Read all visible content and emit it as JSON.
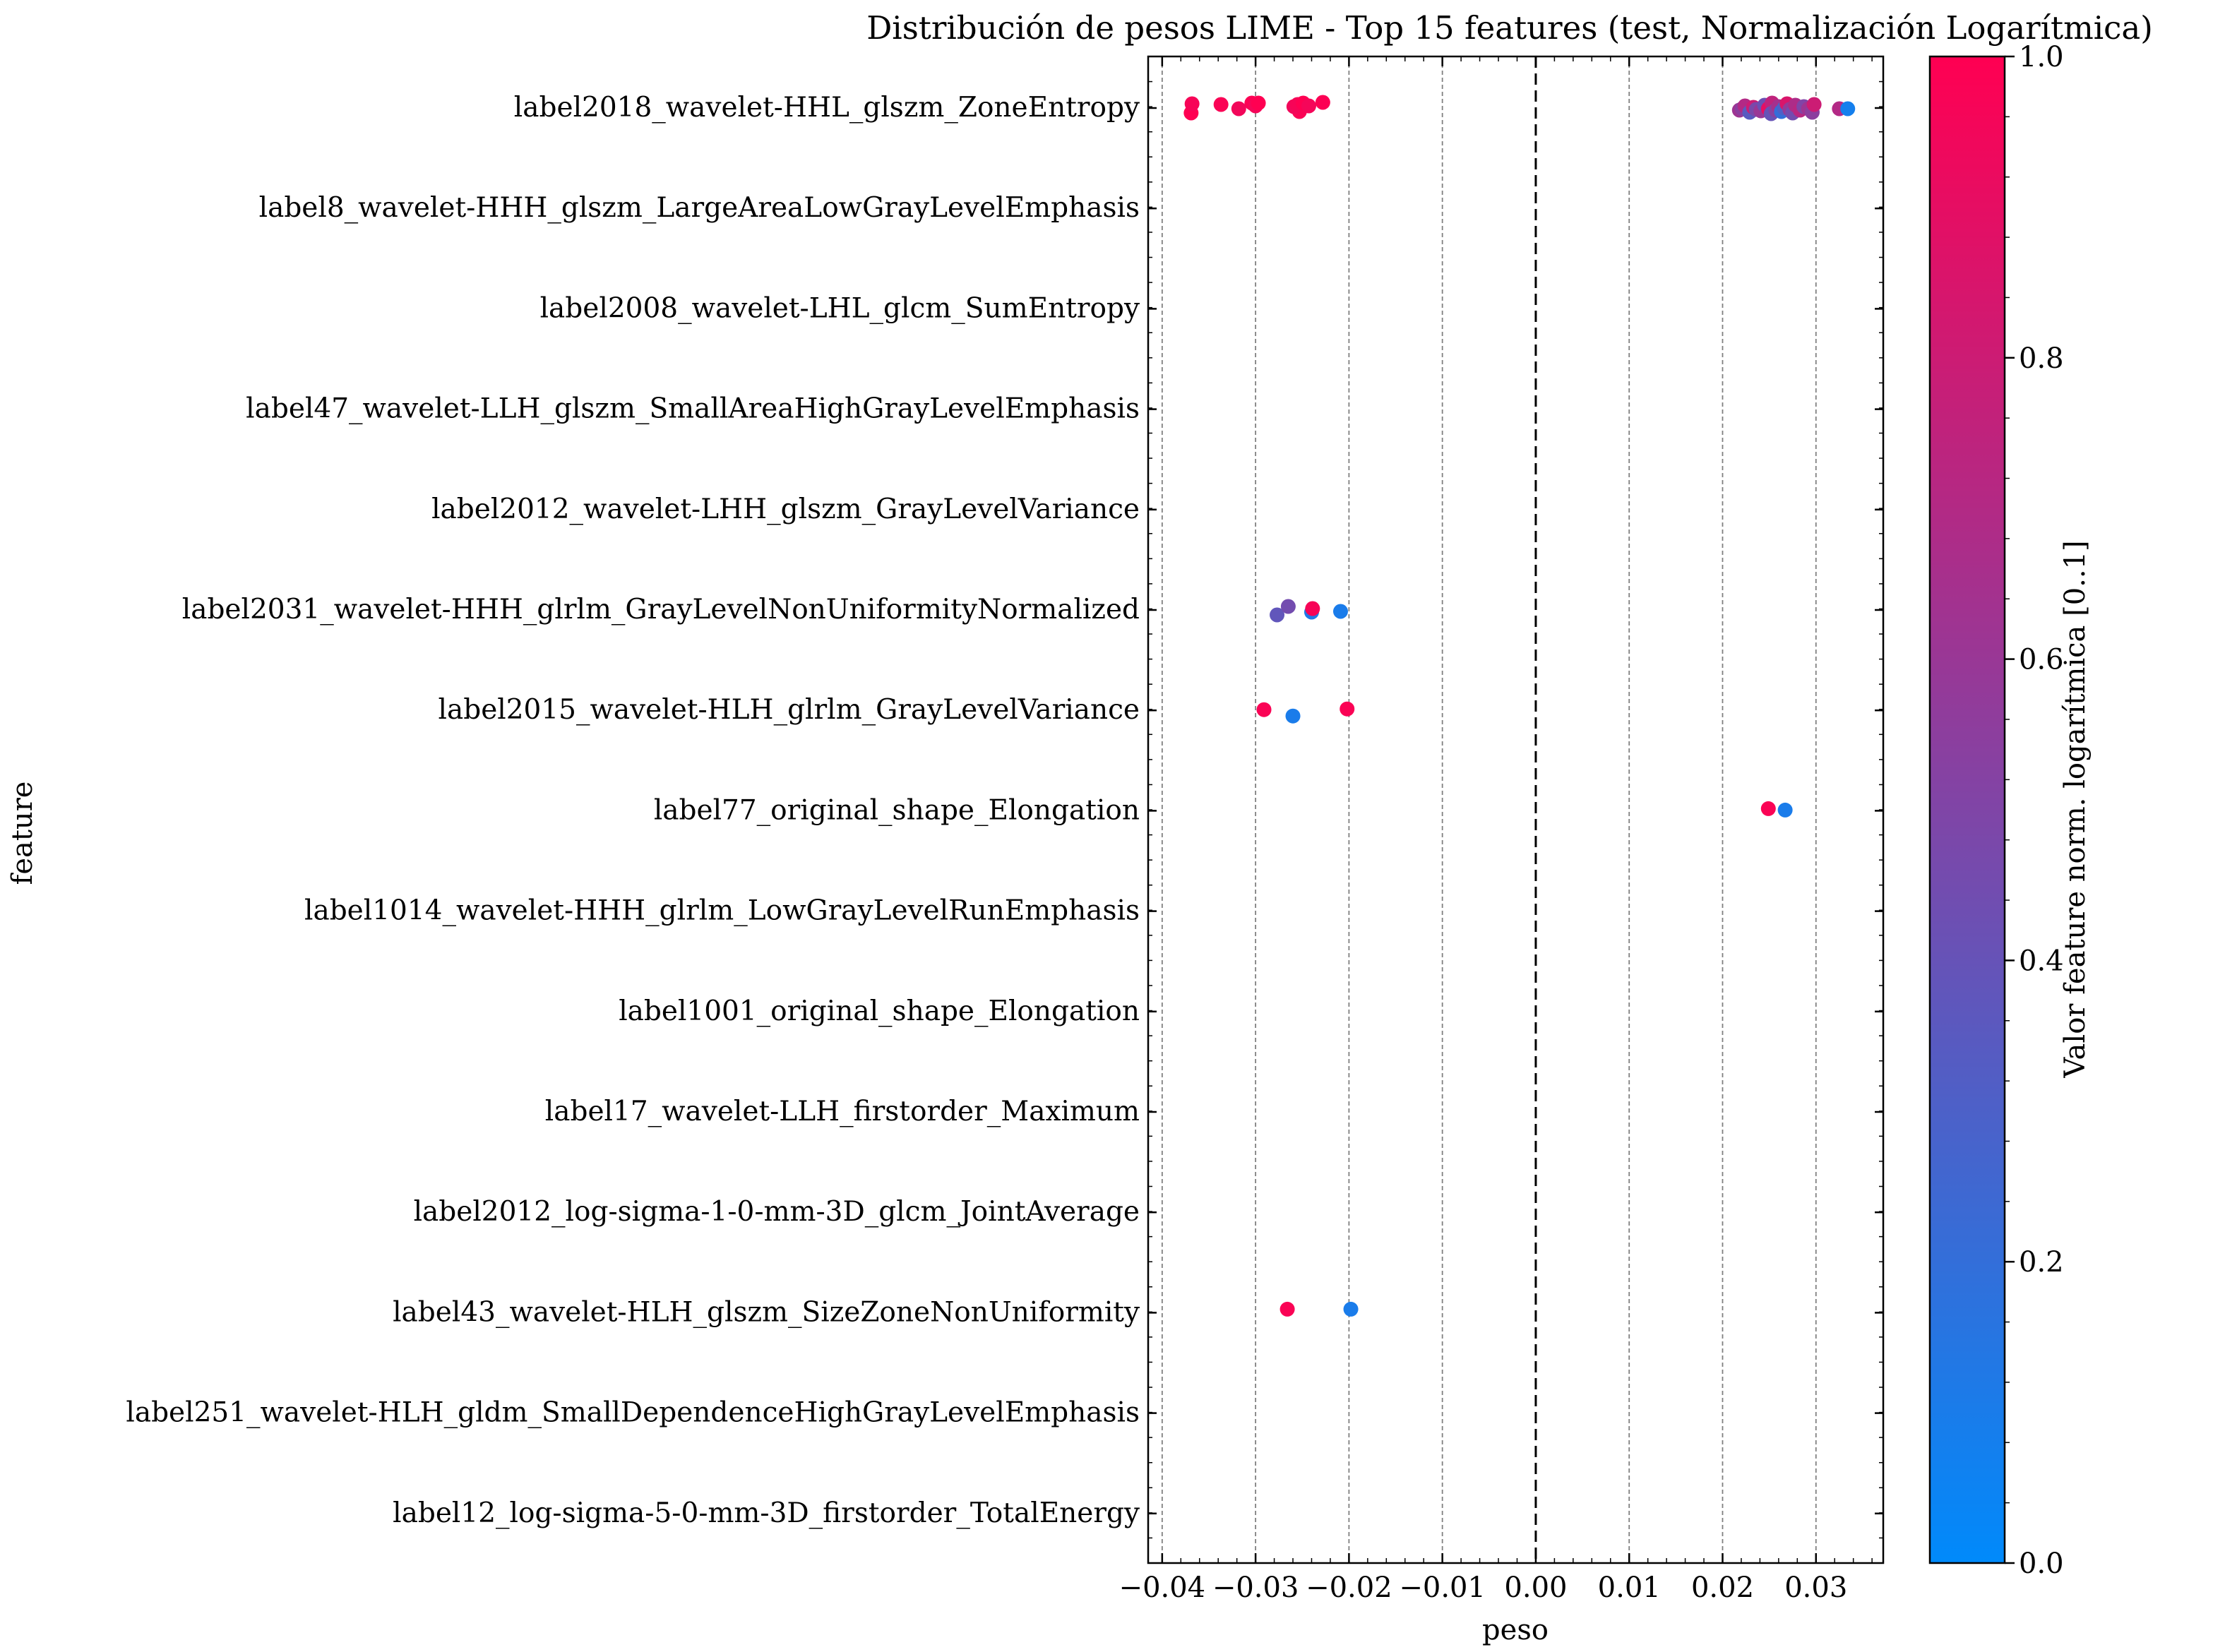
{
  "chart_data": {
    "type": "scatter",
    "title": "Distribución de pesos LIME - Top 15 features (test, Normalización Logarítmica)",
    "xlabel": "peso",
    "ylabel": "feature",
    "xlim": [
      -0.0415,
      0.0372
    ],
    "x_ticks": [
      -0.04,
      -0.03,
      -0.02,
      -0.01,
      0.0,
      0.01,
      0.02,
      0.03
    ],
    "x_tick_labels": [
      "−0.04",
      "−0.03",
      "−0.02",
      "−0.01",
      "0.00",
      "0.01",
      "0.02",
      "0.03"
    ],
    "vertical_reference_line": 0.0,
    "grid": "vertical dashed",
    "categories": [
      "label2018_wavelet-HHL_glszm_ZoneEntropy",
      "label8_wavelet-HHH_glszm_LargeAreaLowGrayLevelEmphasis",
      "label2008_wavelet-LHL_glcm_SumEntropy",
      "label47_wavelet-LLH_glszm_SmallAreaHighGrayLevelEmphasis",
      "label2012_wavelet-LHH_glszm_GrayLevelVariance",
      "label2031_wavelet-HHH_glrlm_GrayLevelNonUniformityNormalized",
      "label2015_wavelet-HLH_glrlm_GrayLevelVariance",
      "label77_original_shape_Elongation",
      "label1014_wavelet-HHH_glrlm_LowGrayLevelRunEmphasis",
      "label1001_original_shape_Elongation",
      "label17_wavelet-LLH_firstorder_Maximum",
      "label2012_log-sigma-1-0-mm-3D_glcm_JointAverage",
      "label43_wavelet-HLH_glszm_SizeZoneNonUniformity",
      "label251_wavelet-HLH_gldm_SmallDependenceHighGrayLevelEmphasis",
      "label12_log-sigma-5-0-mm-3D_firstorder_TotalEnergy"
    ],
    "colorbar": {
      "label": "Valor feature norm. logarítmica [0..1]",
      "range": [
        0.0,
        1.0
      ],
      "ticks": [
        "0.0",
        "0.2",
        "0.4",
        "0.6",
        "0.8",
        "1.0"
      ],
      "colormap": [
        "#008afb",
        "#ff0052"
      ]
    },
    "points": [
      {
        "feature": 0,
        "x": -0.0369,
        "jitter": 0.07,
        "c": 1.0
      },
      {
        "feature": 0,
        "x": -0.0368,
        "jitter": -0.06,
        "c": 0.97
      },
      {
        "feature": 0,
        "x": -0.0337,
        "jitter": -0.05,
        "c": 0.98
      },
      {
        "feature": 0,
        "x": -0.0318,
        "jitter": 0.01,
        "c": 0.95
      },
      {
        "feature": 0,
        "x": -0.0304,
        "jitter": -0.07,
        "c": 0.99
      },
      {
        "feature": 0,
        "x": -0.03,
        "jitter": -0.03,
        "c": 0.96
      },
      {
        "feature": 0,
        "x": -0.0297,
        "jitter": -0.07,
        "c": 1.0
      },
      {
        "feature": 0,
        "x": -0.0253,
        "jitter": 0.05,
        "c": 0.98
      },
      {
        "feature": 0,
        "x": -0.0259,
        "jitter": -0.02,
        "c": 0.95
      },
      {
        "feature": 0,
        "x": -0.0255,
        "jitter": -0.05,
        "c": 0.97
      },
      {
        "feature": 0,
        "x": -0.0249,
        "jitter": -0.07,
        "c": 1.0
      },
      {
        "feature": 0,
        "x": -0.0243,
        "jitter": -0.03,
        "c": 0.96
      },
      {
        "feature": 0,
        "x": -0.0228,
        "jitter": -0.08,
        "c": 0.99
      },
      {
        "feature": 0,
        "x": 0.0218,
        "jitter": 0.03,
        "c": 0.62
      },
      {
        "feature": 0,
        "x": 0.0221,
        "jitter": 0.01,
        "c": 0.55
      },
      {
        "feature": 0,
        "x": 0.0224,
        "jitter": -0.03,
        "c": 0.7
      },
      {
        "feature": 0,
        "x": 0.0229,
        "jitter": 0.06,
        "c": 0.35
      },
      {
        "feature": 0,
        "x": 0.0233,
        "jitter": -0.01,
        "c": 0.8
      },
      {
        "feature": 0,
        "x": 0.0236,
        "jitter": 0.02,
        "c": 0.48
      },
      {
        "feature": 0,
        "x": 0.0241,
        "jitter": 0.04,
        "c": 0.6
      },
      {
        "feature": 0,
        "x": 0.0245,
        "jitter": -0.04,
        "c": 0.42
      },
      {
        "feature": 0,
        "x": 0.0249,
        "jitter": 0.01,
        "c": 0.9
      },
      {
        "feature": 0,
        "x": 0.0253,
        "jitter": -0.07,
        "c": 0.75
      },
      {
        "feature": 0,
        "x": 0.0252,
        "jitter": 0.08,
        "c": 0.4
      },
      {
        "feature": 0,
        "x": 0.0257,
        "jitter": 0.03,
        "c": 0.52
      },
      {
        "feature": 0,
        "x": 0.026,
        "jitter": -0.02,
        "c": 0.65
      },
      {
        "feature": 0,
        "x": 0.0263,
        "jitter": 0.05,
        "c": 0.2
      },
      {
        "feature": 0,
        "x": 0.0266,
        "jitter": 0.0,
        "c": 0.3
      },
      {
        "feature": 0,
        "x": 0.0269,
        "jitter": -0.06,
        "c": 0.85
      },
      {
        "feature": 0,
        "x": 0.0272,
        "jitter": 0.02,
        "c": 0.58
      },
      {
        "feature": 0,
        "x": 0.0275,
        "jitter": 0.07,
        "c": 0.45
      },
      {
        "feature": 0,
        "x": 0.0278,
        "jitter": -0.04,
        "c": 0.68
      },
      {
        "feature": 0,
        "x": 0.0283,
        "jitter": 0.03,
        "c": 0.72
      },
      {
        "feature": 0,
        "x": 0.0287,
        "jitter": -0.02,
        "c": 0.5
      },
      {
        "feature": 0,
        "x": 0.0292,
        "jitter": 0.01,
        "c": 0.62
      },
      {
        "feature": 0,
        "x": 0.0296,
        "jitter": 0.06,
        "c": 0.55
      },
      {
        "feature": 0,
        "x": 0.0298,
        "jitter": -0.05,
        "c": 0.8
      },
      {
        "feature": 0,
        "x": 0.0325,
        "jitter": 0.01,
        "c": 0.7
      },
      {
        "feature": 0,
        "x": 0.0334,
        "jitter": 0.01,
        "c": 0.08
      },
      {
        "feature": 5,
        "x": -0.0277,
        "jitter": 0.07,
        "c": 0.38
      },
      {
        "feature": 5,
        "x": -0.0265,
        "jitter": -0.05,
        "c": 0.45
      },
      {
        "feature": 5,
        "x": -0.024,
        "jitter": 0.03,
        "c": 0.12
      },
      {
        "feature": 5,
        "x": -0.0239,
        "jitter": -0.02,
        "c": 0.97
      },
      {
        "feature": 5,
        "x": -0.0209,
        "jitter": 0.02,
        "c": 0.1
      },
      {
        "feature": 6,
        "x": -0.0291,
        "jitter": -0.01,
        "c": 0.98
      },
      {
        "feature": 6,
        "x": -0.026,
        "jitter": 0.08,
        "c": 0.1
      },
      {
        "feature": 6,
        "x": -0.0202,
        "jitter": -0.02,
        "c": 0.98
      },
      {
        "feature": 7,
        "x": 0.0249,
        "jitter": -0.03,
        "c": 0.98
      },
      {
        "feature": 7,
        "x": 0.0267,
        "jitter": -0.01,
        "c": 0.1
      },
      {
        "feature": 12,
        "x": -0.0266,
        "jitter": -0.05,
        "c": 0.98
      },
      {
        "feature": 12,
        "x": -0.0198,
        "jitter": -0.05,
        "c": 0.1
      }
    ]
  }
}
